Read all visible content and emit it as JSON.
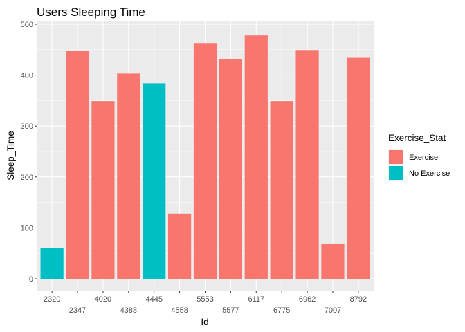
{
  "chart_data": {
    "type": "bar",
    "title": "Users Sleeping Time",
    "xlabel": "Id",
    "ylabel": "Sleep_Time",
    "ylim": [
      0,
      500
    ],
    "yticks": [
      0,
      100,
      200,
      300,
      400,
      500
    ],
    "grid": true,
    "legend_position": "right",
    "legend_title": "Exercise_Stat",
    "groups": [
      {
        "name": "Exercise",
        "color": "#F8766D"
      },
      {
        "name": "No Exercise",
        "color": "#00BFC4"
      }
    ],
    "bars": [
      {
        "category": "2320",
        "value": 61,
        "group": "No Exercise"
      },
      {
        "category": "2347",
        "value": 447,
        "group": "Exercise"
      },
      {
        "category": "4020",
        "value": 349,
        "group": "Exercise"
      },
      {
        "category": "4388",
        "value": 403,
        "group": "Exercise"
      },
      {
        "category": "4445",
        "value": 384,
        "group": "No Exercise"
      },
      {
        "category": "4558",
        "value": 128,
        "group": "Exercise"
      },
      {
        "category": "5553",
        "value": 463,
        "group": "Exercise"
      },
      {
        "category": "5577",
        "value": 432,
        "group": "Exercise"
      },
      {
        "category": "6117",
        "value": 478,
        "group": "Exercise"
      },
      {
        "category": "6775",
        "value": 349,
        "group": "Exercise"
      },
      {
        "category": "6962",
        "value": 448,
        "group": "Exercise"
      },
      {
        "category": "7007",
        "value": 68,
        "group": "Exercise"
      },
      {
        "category": "8792",
        "value": 434,
        "group": "Exercise"
      }
    ]
  }
}
